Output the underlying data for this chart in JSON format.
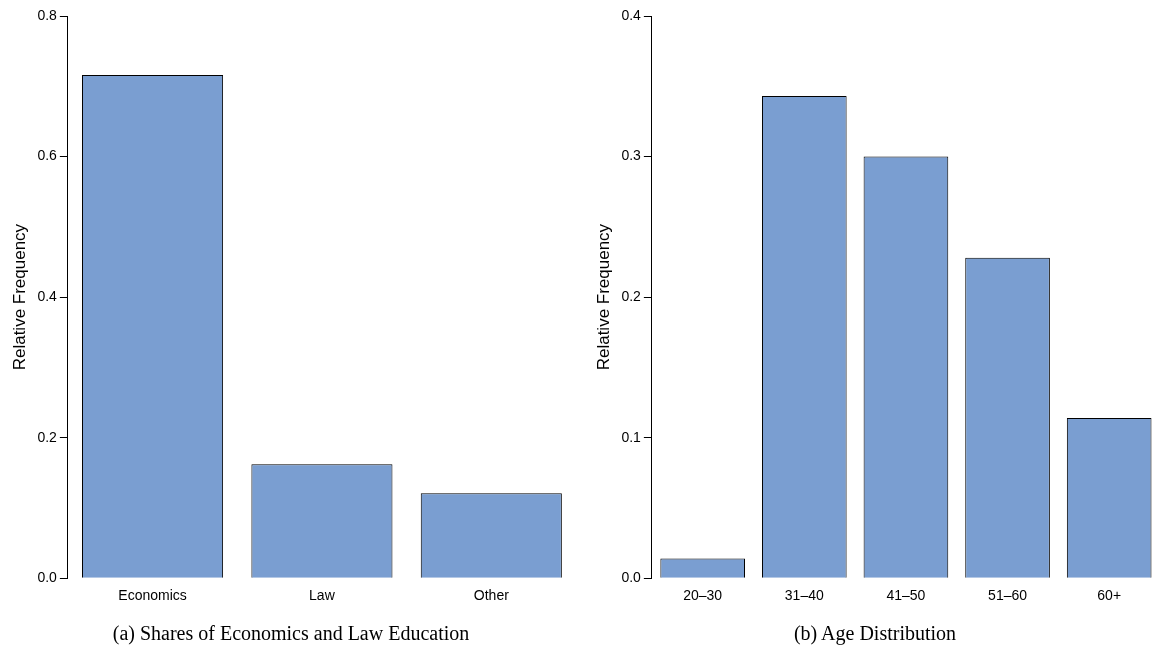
{
  "chart_data": [
    {
      "type": "bar",
      "title": "(a) Shares of Economics and Law Education",
      "ylabel": "Relative Frequency",
      "categories": [
        "Economics",
        "Law",
        "Other"
      ],
      "values": [
        0.716,
        0.162,
        0.121
      ],
      "color": "#7a9ed1",
      "ylim": [
        0,
        0.8
      ],
      "yticks": [
        {
          "value": 0,
          "label": "0.0"
        },
        0.2,
        0.4,
        0.6,
        0.8
      ],
      "grid": false,
      "legend": false
    },
    {
      "type": "bar",
      "title": "(b) Age Distribution",
      "ylabel": "Relative Frequency",
      "categories": [
        "20–30",
        "31–40",
        "41–50",
        "51–60",
        "60+"
      ],
      "values": [
        0.014,
        0.343,
        0.3,
        0.228,
        0.114
      ],
      "color": "#7a9ed1",
      "ylim": [
        0,
        0.4
      ],
      "yticks": [
        {
          "value": 0,
          "label": "0.0"
        },
        0.1,
        0.2,
        0.3,
        0.4
      ],
      "grid": false,
      "legend": false
    }
  ]
}
